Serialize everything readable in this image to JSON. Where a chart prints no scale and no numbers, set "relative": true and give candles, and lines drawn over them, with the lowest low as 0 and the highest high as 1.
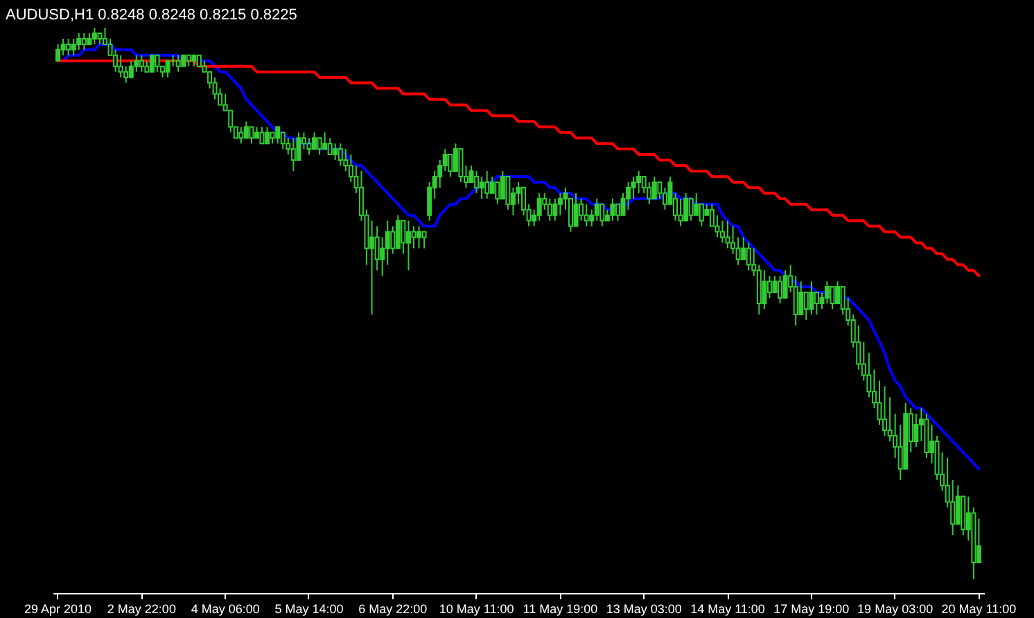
{
  "chart_data": {
    "type": "candlestick",
    "title": "AUDUSD,H1  0.8248 0.8248 0.8215 0.8225",
    "relative": true,
    "color": "#33cc33",
    "grid": false,
    "categories": [
      "29 Apr 2010",
      null,
      null,
      null,
      null,
      null,
      null,
      null,
      null,
      null,
      null,
      null,
      null,
      null,
      null,
      null,
      "2 May 22:00",
      null,
      null,
      null,
      null,
      null,
      null,
      null,
      null,
      null,
      null,
      null,
      null,
      null,
      null,
      null,
      "4 May 06:00",
      null,
      null,
      null,
      null,
      null,
      null,
      null,
      null,
      null,
      null,
      null,
      null,
      null,
      null,
      null,
      "5 May 14:00",
      null,
      null,
      null,
      null,
      null,
      null,
      null,
      null,
      null,
      null,
      null,
      null,
      null,
      null,
      null,
      "6 May 22:00",
      null,
      null,
      null,
      null,
      null,
      null,
      null,
      null,
      null,
      null,
      null,
      null,
      null,
      null,
      null,
      "10 May 11:00",
      null,
      null,
      null,
      null,
      null,
      null,
      null,
      null,
      null,
      null,
      null,
      null,
      null,
      null,
      null,
      "11 May 19:00",
      null,
      null,
      null,
      null,
      null,
      null,
      null,
      null,
      null,
      null,
      null,
      null,
      null,
      null,
      null,
      "13 May 03:00",
      null,
      null,
      null,
      null,
      null,
      null,
      null,
      null,
      null,
      null,
      null,
      null,
      null,
      null,
      null,
      "14 May 11:00",
      null,
      null,
      null,
      null,
      null,
      null,
      null,
      null,
      null,
      null,
      null,
      null,
      null,
      null,
      null,
      "17 May 19:00",
      null,
      null,
      null,
      null,
      null,
      null,
      null,
      null,
      null,
      null,
      null,
      null,
      null,
      null,
      null,
      "19 May 03:00",
      null,
      null,
      null,
      null,
      null,
      null,
      null,
      null,
      null,
      null,
      null,
      null,
      null,
      null,
      null,
      "20 May 11:00"
    ],
    "ohlc": [
      [
        0.94,
        0.97,
        0.94,
        0.96
      ],
      [
        0.96,
        0.98,
        0.95,
        0.97
      ],
      [
        0.97,
        0.98,
        0.95,
        0.96
      ],
      [
        0.96,
        0.98,
        0.95,
        0.97
      ],
      [
        0.97,
        0.99,
        0.96,
        0.98
      ],
      [
        0.98,
        0.99,
        0.96,
        0.97
      ],
      [
        0.97,
        0.99,
        0.97,
        0.98
      ],
      [
        0.98,
        1.0,
        0.97,
        0.99
      ],
      [
        0.99,
        0.99,
        0.97,
        0.98
      ],
      [
        0.98,
        1.0,
        0.97,
        0.97
      ],
      [
        0.97,
        0.98,
        0.95,
        0.95
      ],
      [
        0.95,
        0.96,
        0.92,
        0.93
      ],
      [
        0.93,
        0.95,
        0.91,
        0.92
      ],
      [
        0.92,
        0.93,
        0.9,
        0.91
      ],
      [
        0.91,
        0.94,
        0.91,
        0.93
      ],
      [
        0.93,
        0.95,
        0.92,
        0.94
      ],
      [
        0.94,
        0.95,
        0.92,
        0.93
      ],
      [
        0.93,
        0.94,
        0.92,
        0.92
      ],
      [
        0.92,
        0.95,
        0.92,
        0.95
      ],
      [
        0.95,
        0.95,
        0.92,
        0.93
      ],
      [
        0.93,
        0.93,
        0.91,
        0.92
      ],
      [
        0.92,
        0.94,
        0.91,
        0.94
      ],
      [
        0.94,
        0.95,
        0.93,
        0.94
      ],
      [
        0.94,
        0.95,
        0.92,
        0.93
      ],
      [
        0.93,
        0.95,
        0.93,
        0.95
      ],
      [
        0.95,
        0.95,
        0.93,
        0.94
      ],
      [
        0.94,
        0.95,
        0.93,
        0.95
      ],
      [
        0.95,
        0.95,
        0.93,
        0.93
      ],
      [
        0.93,
        0.94,
        0.92,
        0.92
      ],
      [
        0.92,
        0.92,
        0.89,
        0.9
      ],
      [
        0.9,
        0.91,
        0.87,
        0.88
      ],
      [
        0.88,
        0.89,
        0.86,
        0.86
      ],
      [
        0.86,
        0.88,
        0.85,
        0.85
      ],
      [
        0.85,
        0.85,
        0.81,
        0.82
      ],
      [
        0.82,
        0.82,
        0.8,
        0.8
      ],
      [
        0.81,
        0.82,
        0.79,
        0.8
      ],
      [
        0.8,
        0.83,
        0.8,
        0.82
      ],
      [
        0.82,
        0.82,
        0.79,
        0.8
      ],
      [
        0.8,
        0.82,
        0.8,
        0.81
      ],
      [
        0.81,
        0.82,
        0.79,
        0.79
      ],
      [
        0.79,
        0.82,
        0.79,
        0.81
      ],
      [
        0.81,
        0.81,
        0.79,
        0.8
      ],
      [
        0.8,
        0.82,
        0.79,
        0.82
      ],
      [
        0.81,
        0.81,
        0.78,
        0.79
      ],
      [
        0.79,
        0.8,
        0.77,
        0.78
      ],
      [
        0.78,
        0.8,
        0.74,
        0.76
      ],
      [
        0.76,
        0.81,
        0.76,
        0.8
      ],
      [
        0.8,
        0.81,
        0.78,
        0.79
      ],
      [
        0.79,
        0.8,
        0.77,
        0.78
      ],
      [
        0.78,
        0.81,
        0.78,
        0.8
      ],
      [
        0.8,
        0.8,
        0.77,
        0.78
      ],
      [
        0.78,
        0.81,
        0.78,
        0.79
      ],
      [
        0.79,
        0.8,
        0.77,
        0.77
      ],
      [
        0.77,
        0.79,
        0.76,
        0.78
      ],
      [
        0.78,
        0.79,
        0.75,
        0.76
      ],
      [
        0.76,
        0.78,
        0.74,
        0.75
      ],
      [
        0.75,
        0.77,
        0.72,
        0.73
      ],
      [
        0.73,
        0.75,
        0.7,
        0.71
      ],
      [
        0.71,
        0.74,
        0.65,
        0.66
      ],
      [
        0.66,
        0.67,
        0.57,
        0.6
      ],
      [
        0.6,
        0.65,
        0.48,
        0.62
      ],
      [
        0.62,
        0.64,
        0.56,
        0.58
      ],
      [
        0.58,
        0.62,
        0.55,
        0.6
      ],
      [
        0.6,
        0.65,
        0.57,
        0.63
      ],
      [
        0.63,
        0.64,
        0.59,
        0.6
      ],
      [
        0.6,
        0.66,
        0.6,
        0.65
      ],
      [
        0.65,
        0.65,
        0.59,
        0.61
      ],
      [
        0.61,
        0.65,
        0.56,
        0.63
      ],
      [
        0.63,
        0.64,
        0.6,
        0.62
      ],
      [
        0.62,
        0.64,
        0.6,
        0.63
      ],
      [
        0.63,
        0.63,
        0.6,
        0.62
      ],
      [
        0.66,
        0.72,
        0.65,
        0.71
      ],
      [
        0.71,
        0.74,
        0.69,
        0.73
      ],
      [
        0.73,
        0.76,
        0.71,
        0.75
      ],
      [
        0.75,
        0.78,
        0.74,
        0.77
      ],
      [
        0.77,
        0.77,
        0.73,
        0.74
      ],
      [
        0.74,
        0.79,
        0.74,
        0.78
      ],
      [
        0.78,
        0.78,
        0.72,
        0.73
      ],
      [
        0.73,
        0.75,
        0.71,
        0.72
      ],
      [
        0.72,
        0.75,
        0.72,
        0.74
      ],
      [
        0.73,
        0.74,
        0.7,
        0.71
      ],
      [
        0.71,
        0.73,
        0.69,
        0.72
      ],
      [
        0.72,
        0.74,
        0.69,
        0.7
      ],
      [
        0.7,
        0.73,
        0.7,
        0.72
      ],
      [
        0.72,
        0.72,
        0.68,
        0.69
      ],
      [
        0.69,
        0.74,
        0.69,
        0.73
      ],
      [
        0.73,
        0.73,
        0.67,
        0.68
      ],
      [
        0.68,
        0.71,
        0.66,
        0.7
      ],
      [
        0.7,
        0.72,
        0.68,
        0.71
      ],
      [
        0.71,
        0.71,
        0.66,
        0.67
      ],
      [
        0.67,
        0.68,
        0.64,
        0.65
      ],
      [
        0.65,
        0.67,
        0.64,
        0.66
      ],
      [
        0.66,
        0.7,
        0.65,
        0.69
      ],
      [
        0.69,
        0.7,
        0.67,
        0.68
      ],
      [
        0.68,
        0.69,
        0.65,
        0.66
      ],
      [
        0.66,
        0.69,
        0.65,
        0.68
      ],
      [
        0.68,
        0.7,
        0.66,
        0.69
      ],
      [
        0.69,
        0.71,
        0.67,
        0.7
      ],
      [
        0.69,
        0.69,
        0.63,
        0.64
      ],
      [
        0.64,
        0.7,
        0.64,
        0.68
      ],
      [
        0.68,
        0.69,
        0.65,
        0.66
      ],
      [
        0.66,
        0.68,
        0.64,
        0.65
      ],
      [
        0.65,
        0.67,
        0.64,
        0.66
      ],
      [
        0.66,
        0.69,
        0.65,
        0.68
      ],
      [
        0.68,
        0.68,
        0.64,
        0.65
      ],
      [
        0.65,
        0.67,
        0.65,
        0.66
      ],
      [
        0.66,
        0.69,
        0.65,
        0.68
      ],
      [
        0.68,
        0.68,
        0.65,
        0.66
      ],
      [
        0.66,
        0.7,
        0.66,
        0.69
      ],
      [
        0.69,
        0.72,
        0.67,
        0.71
      ],
      [
        0.71,
        0.73,
        0.69,
        0.72
      ],
      [
        0.72,
        0.74,
        0.7,
        0.73
      ],
      [
        0.73,
        0.73,
        0.7,
        0.71
      ],
      [
        0.71,
        0.72,
        0.68,
        0.69
      ],
      [
        0.69,
        0.73,
        0.69,
        0.72
      ],
      [
        0.72,
        0.72,
        0.69,
        0.7
      ],
      [
        0.7,
        0.71,
        0.67,
        0.68
      ],
      [
        0.68,
        0.73,
        0.68,
        0.72
      ],
      [
        0.69,
        0.7,
        0.65,
        0.66
      ],
      [
        0.66,
        0.69,
        0.64,
        0.65
      ],
      [
        0.65,
        0.7,
        0.65,
        0.69
      ],
      [
        0.69,
        0.69,
        0.65,
        0.66
      ],
      [
        0.66,
        0.7,
        0.66,
        0.68
      ],
      [
        0.68,
        0.68,
        0.64,
        0.65
      ],
      [
        0.66,
        0.68,
        0.66,
        0.67
      ],
      [
        0.67,
        0.68,
        0.64,
        0.64
      ],
      [
        0.64,
        0.66,
        0.62,
        0.63
      ],
      [
        0.63,
        0.65,
        0.61,
        0.62
      ],
      [
        0.62,
        0.65,
        0.6,
        0.61
      ],
      [
        0.61,
        0.64,
        0.59,
        0.6
      ],
      [
        0.6,
        0.62,
        0.57,
        0.58
      ],
      [
        0.58,
        0.62,
        0.58,
        0.6
      ],
      [
        0.6,
        0.61,
        0.56,
        0.57
      ],
      [
        0.57,
        0.6,
        0.55,
        0.56
      ],
      [
        0.56,
        0.57,
        0.48,
        0.5
      ],
      [
        0.5,
        0.56,
        0.49,
        0.54
      ],
      [
        0.54,
        0.55,
        0.51,
        0.52
      ],
      [
        0.52,
        0.55,
        0.52,
        0.54
      ],
      [
        0.54,
        0.55,
        0.5,
        0.51
      ],
      [
        0.51,
        0.56,
        0.51,
        0.55
      ],
      [
        0.55,
        0.57,
        0.52,
        0.53
      ],
      [
        0.53,
        0.55,
        0.46,
        0.48
      ],
      [
        0.48,
        0.54,
        0.48,
        0.52
      ],
      [
        0.52,
        0.52,
        0.47,
        0.49
      ],
      [
        0.49,
        0.54,
        0.48,
        0.52
      ],
      [
        0.52,
        0.52,
        0.48,
        0.5
      ],
      [
        0.5,
        0.52,
        0.49,
        0.51
      ],
      [
        0.51,
        0.54,
        0.5,
        0.53
      ],
      [
        0.53,
        0.53,
        0.49,
        0.5
      ],
      [
        0.5,
        0.54,
        0.5,
        0.53
      ],
      [
        0.53,
        0.53,
        0.48,
        0.49
      ],
      [
        0.49,
        0.51,
        0.46,
        0.47
      ],
      [
        0.47,
        0.48,
        0.42,
        0.43
      ],
      [
        0.43,
        0.46,
        0.38,
        0.39
      ],
      [
        0.39,
        0.43,
        0.36,
        0.37
      ],
      [
        0.37,
        0.41,
        0.33,
        0.34
      ],
      [
        0.34,
        0.38,
        0.31,
        0.32
      ],
      [
        0.32,
        0.36,
        0.28,
        0.29
      ],
      [
        0.29,
        0.35,
        0.26,
        0.27
      ],
      [
        0.27,
        0.33,
        0.25,
        0.26
      ],
      [
        0.26,
        0.3,
        0.22,
        0.24
      ],
      [
        0.24,
        0.28,
        0.18,
        0.2
      ],
      [
        0.2,
        0.32,
        0.2,
        0.3
      ],
      [
        0.3,
        0.31,
        0.23,
        0.25
      ],
      [
        0.25,
        0.3,
        0.24,
        0.28
      ],
      [
        0.28,
        0.31,
        0.25,
        0.29
      ],
      [
        0.29,
        0.3,
        0.22,
        0.23
      ],
      [
        0.23,
        0.28,
        0.21,
        0.25
      ],
      [
        0.25,
        0.26,
        0.18,
        0.19
      ],
      [
        0.19,
        0.23,
        0.16,
        0.17
      ],
      [
        0.17,
        0.22,
        0.13,
        0.14
      ],
      [
        0.14,
        0.18,
        0.08,
        0.1
      ],
      [
        0.1,
        0.17,
        0.1,
        0.15
      ],
      [
        0.15,
        0.15,
        0.08,
        0.09
      ],
      [
        0.09,
        0.15,
        0.07,
        0.12
      ],
      [
        0.12,
        0.13,
        0.0,
        0.03
      ],
      [
        0.03,
        0.11,
        0.03,
        0.06
      ]
    ],
    "series": [
      {
        "type": "line",
        "color": "#0000ff",
        "values": [
          0.94,
          0.94,
          0.95,
          0.95,
          0.95,
          0.96,
          0.96,
          0.96,
          0.97,
          0.97,
          0.97,
          0.96,
          0.96,
          0.96,
          0.96,
          0.95,
          0.95,
          0.95,
          0.95,
          0.95,
          0.95,
          0.95,
          0.95,
          0.95,
          0.94,
          0.94,
          0.94,
          0.94,
          0.94,
          0.94,
          0.93,
          0.92,
          0.92,
          0.91,
          0.9,
          0.89,
          0.87,
          0.86,
          0.85,
          0.84,
          0.83,
          0.82,
          0.81,
          0.81,
          0.8,
          0.8,
          0.79,
          0.79,
          0.79,
          0.79,
          0.78,
          0.78,
          0.78,
          0.78,
          0.78,
          0.77,
          0.76,
          0.75,
          0.75,
          0.74,
          0.73,
          0.72,
          0.71,
          0.7,
          0.69,
          0.68,
          0.67,
          0.66,
          0.66,
          0.65,
          0.64,
          0.64,
          0.64,
          0.66,
          0.67,
          0.68,
          0.68,
          0.69,
          0.69,
          0.7,
          0.71,
          0.71,
          0.72,
          0.72,
          0.73,
          0.73,
          0.73,
          0.73,
          0.73,
          0.73,
          0.73,
          0.72,
          0.72,
          0.72,
          0.71,
          0.71,
          0.7,
          0.7,
          0.7,
          0.69,
          0.69,
          0.69,
          0.68,
          0.68,
          0.68,
          0.67,
          0.67,
          0.68,
          0.68,
          0.68,
          0.69,
          0.69,
          0.69,
          0.69,
          0.69,
          0.69,
          0.7,
          0.7,
          0.7,
          0.69,
          0.69,
          0.69,
          0.68,
          0.68,
          0.68,
          0.68,
          0.68,
          0.66,
          0.65,
          0.64,
          0.64,
          0.62,
          0.61,
          0.6,
          0.59,
          0.58,
          0.57,
          0.56,
          0.56,
          0.55,
          0.54,
          0.54,
          0.53,
          0.53,
          0.53,
          0.52,
          0.52,
          0.52,
          0.52,
          0.51,
          0.51,
          0.51,
          0.5,
          0.49,
          0.48,
          0.47,
          0.45,
          0.43,
          0.41,
          0.38,
          0.36,
          0.35,
          0.33,
          0.32,
          0.31,
          0.31,
          0.3,
          0.29,
          0.28,
          0.27,
          0.26,
          0.25,
          0.24,
          0.23,
          0.22,
          0.21,
          0.2
        ]
      },
      {
        "type": "line",
        "color": "#ff0000",
        "values": [
          0.94,
          0.94,
          0.94,
          0.94,
          0.94,
          0.94,
          0.94,
          0.94,
          0.94,
          0.94,
          0.94,
          0.94,
          0.94,
          0.94,
          0.94,
          0.94,
          0.94,
          0.94,
          0.94,
          0.94,
          0.94,
          0.94,
          0.94,
          0.94,
          0.94,
          0.94,
          0.94,
          0.93,
          0.93,
          0.93,
          0.93,
          0.93,
          0.93,
          0.93,
          0.93,
          0.93,
          0.93,
          0.93,
          0.92,
          0.92,
          0.92,
          0.92,
          0.92,
          0.92,
          0.92,
          0.92,
          0.92,
          0.92,
          0.92,
          0.92,
          0.91,
          0.91,
          0.91,
          0.91,
          0.91,
          0.91,
          0.9,
          0.9,
          0.9,
          0.9,
          0.9,
          0.89,
          0.89,
          0.89,
          0.89,
          0.89,
          0.88,
          0.88,
          0.88,
          0.88,
          0.88,
          0.87,
          0.87,
          0.87,
          0.87,
          0.86,
          0.86,
          0.86,
          0.86,
          0.85,
          0.85,
          0.85,
          0.85,
          0.84,
          0.84,
          0.84,
          0.84,
          0.84,
          0.83,
          0.83,
          0.83,
          0.83,
          0.82,
          0.82,
          0.82,
          0.82,
          0.81,
          0.81,
          0.81,
          0.8,
          0.8,
          0.8,
          0.8,
          0.79,
          0.79,
          0.79,
          0.79,
          0.78,
          0.78,
          0.78,
          0.78,
          0.77,
          0.77,
          0.77,
          0.77,
          0.76,
          0.76,
          0.76,
          0.75,
          0.75,
          0.75,
          0.74,
          0.74,
          0.74,
          0.74,
          0.73,
          0.73,
          0.73,
          0.73,
          0.72,
          0.72,
          0.72,
          0.71,
          0.71,
          0.71,
          0.7,
          0.7,
          0.7,
          0.69,
          0.69,
          0.68,
          0.68,
          0.68,
          0.68,
          0.67,
          0.67,
          0.67,
          0.67,
          0.66,
          0.66,
          0.66,
          0.65,
          0.65,
          0.65,
          0.65,
          0.64,
          0.64,
          0.64,
          0.63,
          0.63,
          0.63,
          0.62,
          0.62,
          0.62,
          0.61,
          0.61,
          0.6,
          0.6,
          0.59,
          0.59,
          0.58,
          0.58,
          0.57,
          0.57,
          0.56,
          0.56,
          0.55
        ]
      }
    ]
  }
}
